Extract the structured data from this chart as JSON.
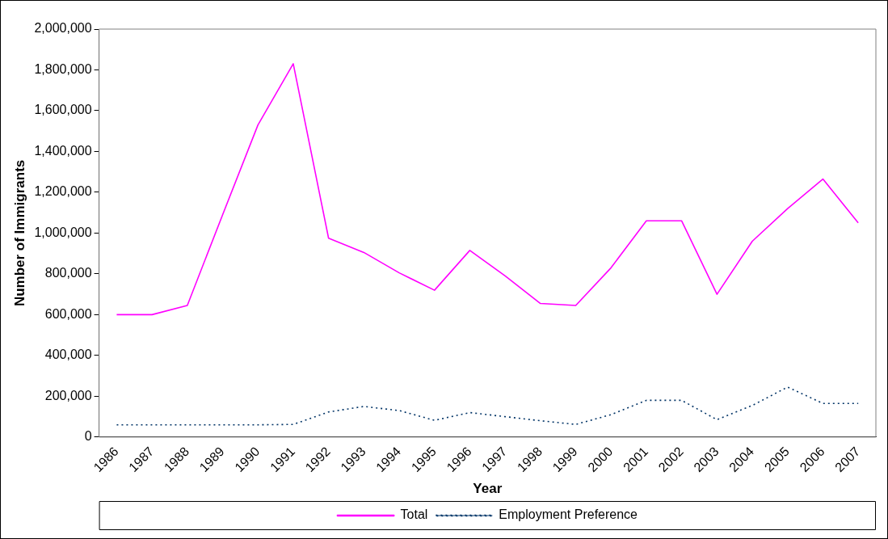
{
  "chart_data": {
    "type": "line",
    "xlabel": "Year",
    "ylabel": "Number of Immigrants",
    "categories": [
      "1986",
      "1987",
      "1988",
      "1989",
      "1990",
      "1991",
      "1992",
      "1993",
      "1994",
      "1995",
      "1996",
      "1997",
      "1998",
      "1999",
      "2000",
      "2001",
      "2002",
      "2003",
      "2004",
      "2005",
      "2006",
      "2007"
    ],
    "series": [
      {
        "name": "Total",
        "color": "#ff00ff",
        "line_style": "solid",
        "values": [
          600000,
          600000,
          645000,
          1090000,
          1530000,
          1830000,
          975000,
          905000,
          805000,
          720000,
          915000,
          790000,
          655000,
          645000,
          830000,
          1060000,
          1060000,
          700000,
          960000,
          1120000,
          1265000,
          1050000
        ]
      },
      {
        "name": "Employment Preference",
        "color": "#003366",
        "line_style": "dotted",
        "values": [
          60000,
          60000,
          60000,
          60000,
          60000,
          62000,
          123000,
          150000,
          130000,
          82000,
          120000,
          100000,
          80000,
          62000,
          110000,
          180000,
          180000,
          85000,
          155000,
          245000,
          165000,
          165000
        ]
      }
    ],
    "ylim": [
      0,
      2000000
    ],
    "yticks": [
      0,
      {
        "value": 200000,
        "label": "200,000"
      },
      {
        "value": 400000,
        "label": "400,000"
      },
      {
        "value": 600000,
        "label": "600,000"
      },
      {
        "value": 800000,
        "label": "800,000"
      },
      {
        "value": 1000000,
        "label": "1,000,000"
      },
      {
        "value": 1200000,
        "label": "1,200,000"
      },
      {
        "value": 1400000,
        "label": "1,400,000"
      },
      {
        "value": 1600000,
        "label": "1,600,000"
      },
      {
        "value": 1800000,
        "label": "1,800,000"
      },
      {
        "value": 2000000,
        "label": "2,000,000"
      }
    ],
    "grid": false,
    "legend": "bottom",
    "marker": "none"
  }
}
